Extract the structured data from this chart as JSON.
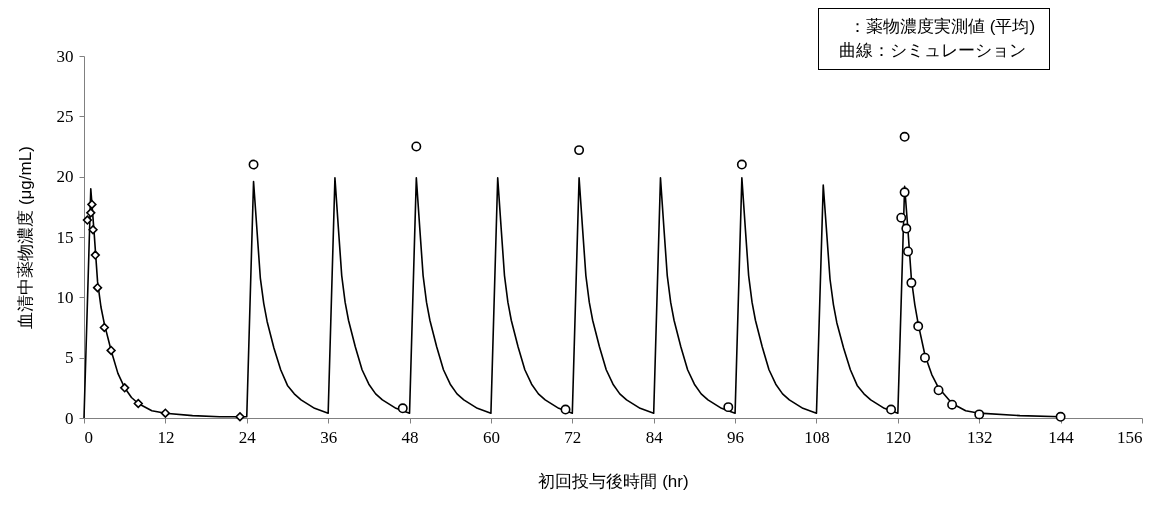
{
  "chart_data": {
    "type": "scatter",
    "xlabel": "初回投与後時間 (hr)",
    "ylabel": "血清中薬物濃度 (μg/mL)",
    "xlim": [
      0,
      156
    ],
    "xticks": [
      0,
      12,
      24,
      36,
      48,
      60,
      72,
      84,
      96,
      108,
      120,
      132,
      144,
      156
    ],
    "ylim": [
      0,
      30
    ],
    "yticks": [
      0,
      5,
      10,
      15,
      20,
      25,
      30
    ],
    "grid": false,
    "annotations": [
      "：薬物濃度実測値 (平均)",
      "曲線：シミュレーション"
    ],
    "series": [
      {
        "type": "line",
        "color": "#000000",
        "line_style": "solid",
        "x": [
          0,
          1,
          1.5,
          2,
          2.5,
          3,
          4,
          5,
          6,
          7,
          8,
          10,
          12,
          16,
          20,
          24,
          25,
          25.5,
          26,
          26.5,
          27,
          28,
          29,
          30,
          31,
          32,
          34,
          36,
          37,
          37.5,
          38,
          38.5,
          39,
          40,
          41,
          42,
          43,
          44,
          46,
          48,
          49,
          49.5,
          50,
          50.5,
          51,
          52,
          53,
          54,
          55,
          56,
          58,
          60,
          61,
          61.5,
          62,
          62.5,
          63,
          64,
          65,
          66,
          67,
          68,
          70,
          72,
          73,
          73.5,
          74,
          74.5,
          75,
          76,
          77,
          78,
          79,
          80,
          82,
          84,
          85,
          85.5,
          86,
          86.5,
          87,
          88,
          89,
          90,
          91,
          92,
          94,
          96,
          97,
          97.5,
          98,
          98.5,
          99,
          100,
          101,
          102,
          103,
          104,
          106,
          108,
          109,
          109.5,
          110,
          110.5,
          111,
          112,
          113,
          114,
          115,
          116,
          118,
          120,
          121,
          121.5,
          122,
          122.5,
          123,
          124,
          125,
          126,
          128,
          130,
          132,
          138,
          144
        ],
        "values": [
          0,
          19.0,
          15.3,
          11.3,
          9.2,
          7.8,
          5.6,
          3.7,
          2.5,
          1.7,
          1.2,
          0.6,
          0.4,
          0.2,
          0.1,
          0.1,
          19.6,
          15.6,
          11.6,
          9.5,
          8.0,
          5.8,
          4.0,
          2.7,
          2.0,
          1.5,
          0.8,
          0.4,
          19.9,
          15.8,
          11.8,
          9.6,
          8.1,
          5.9,
          4.0,
          2.8,
          2.0,
          1.5,
          0.8,
          0.4,
          19.9,
          15.8,
          11.8,
          9.6,
          8.1,
          5.9,
          4.0,
          2.8,
          2.0,
          1.5,
          0.8,
          0.4,
          19.9,
          15.8,
          11.8,
          9.6,
          8.1,
          5.9,
          4.0,
          2.8,
          2.0,
          1.5,
          0.8,
          0.4,
          19.9,
          15.8,
          11.8,
          9.6,
          8.1,
          5.9,
          4.0,
          2.8,
          2.0,
          1.5,
          0.8,
          0.4,
          19.9,
          15.8,
          11.8,
          9.6,
          8.1,
          5.9,
          4.0,
          2.8,
          2.0,
          1.5,
          0.8,
          0.4,
          19.9,
          15.8,
          11.8,
          9.6,
          8.1,
          5.9,
          4.0,
          2.8,
          2.0,
          1.5,
          0.8,
          0.4,
          19.3,
          15.4,
          11.5,
          9.4,
          7.9,
          5.8,
          4.0,
          2.7,
          2.0,
          1.5,
          0.8,
          0.4,
          19.2,
          15.5,
          11.5,
          9.4,
          7.8,
          5.2,
          3.6,
          2.5,
          1.2,
          0.6,
          0.4,
          0.2,
          0.1
        ]
      },
      {
        "color": "#000000",
        "marker": "diamond",
        "x": [
          0.5,
          1,
          1.17,
          1.33,
          1.67,
          2,
          3,
          4,
          6,
          8,
          12,
          23
        ],
        "values": [
          16.4,
          17.0,
          17.7,
          15.6,
          13.5,
          10.8,
          7.5,
          5.6,
          2.5,
          1.2,
          0.4,
          0.1
        ]
      },
      {
        "color": "#000000",
        "marker": "circle",
        "x": [
          25,
          47,
          49,
          71,
          73,
          95,
          97,
          119,
          121,
          120.5,
          121,
          121.25,
          121.5,
          122,
          123,
          124,
          126,
          128,
          132,
          144
        ],
        "values": [
          21.0,
          0.8,
          22.5,
          0.7,
          22.2,
          0.9,
          21.0,
          0.7,
          23.3,
          16.6,
          18.7,
          15.7,
          13.8,
          11.2,
          7.6,
          5.0,
          2.3,
          1.1,
          0.3,
          0.1
        ]
      }
    ]
  }
}
